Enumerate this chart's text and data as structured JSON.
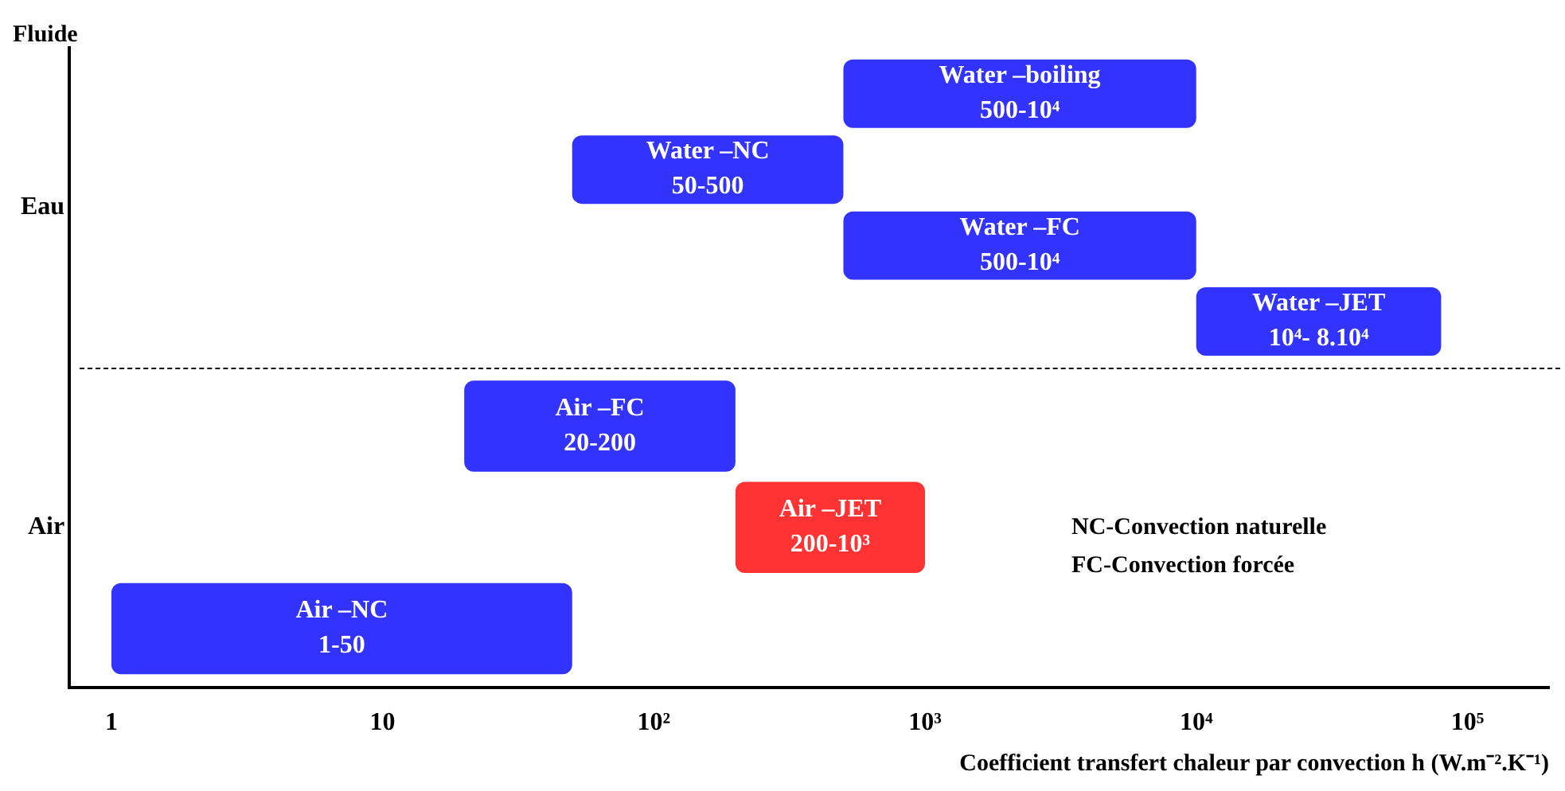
{
  "chart_data": {
    "type": "bar",
    "orientation": "horizontal",
    "xlabel": "Coefficient transfert chaleur par convection h (W.m⁻².K⁻¹)",
    "ylabel": "Fluide",
    "categories": [
      "Eau",
      "Air"
    ],
    "log": "x",
    "xlim": [
      0.7,
      200000
    ],
    "xticks": [
      1,
      10,
      {
        "value": 100,
        "label": "10²"
      },
      {
        "value": 1000,
        "label": "10³"
      },
      {
        "value": 10000,
        "label": "10⁴"
      },
      {
        "value": 100000,
        "label": "10⁵"
      }
    ],
    "grid": false,
    "legend": false,
    "series": [
      {
        "name": "Water –boiling\n500-10⁴",
        "color": "#3333ff",
        "base": [
          500,
          null
        ],
        "values": [
          9500,
          null
        ]
      },
      {
        "name": "Water –NC\n50-500",
        "color": "#3333ff",
        "base": [
          50,
          null
        ],
        "values": [
          450,
          null
        ]
      },
      {
        "name": "Water –FC\n500-10⁴",
        "color": "#3333ff",
        "base": [
          500,
          null
        ],
        "values": [
          9500,
          null
        ]
      },
      {
        "name": "Water –JET\n10⁴- 8.10⁴",
        "color": "#3333ff",
        "base": [
          10000,
          null
        ],
        "values": [
          70000,
          null
        ]
      },
      {
        "name": "Air –FC\n20-200",
        "color": "#3333ff",
        "base": [
          null,
          20
        ],
        "values": [
          null,
          180
        ]
      },
      {
        "name": "Air –JET\n200-10³",
        "color": "#ff3333",
        "base": [
          null,
          200
        ],
        "values": [
          null,
          800
        ]
      },
      {
        "name": "Air –NC\n1-50",
        "color": "#3333ff",
        "base": [
          null,
          1
        ],
        "values": [
          null,
          49
        ]
      }
    ],
    "annotations": [
      "NC-Convection naturelle",
      "FC-Convection forcée"
    ]
  }
}
